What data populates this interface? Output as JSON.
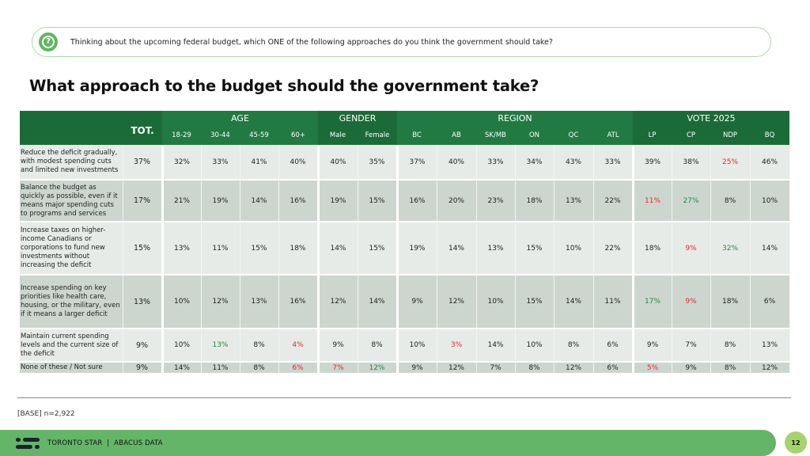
{
  "question": {
    "icon": "question-bubble-icon",
    "text": "Thinking about the upcoming federal budget, which ONE of the following approaches do you think the government should take?"
  },
  "title": "What approach to the budget should the government take?",
  "table": {
    "total_label": "TOT.",
    "groups": [
      {
        "label": "AGE",
        "columns": [
          "18-29",
          "30-44",
          "45-59",
          "60+"
        ]
      },
      {
        "label": "GENDER",
        "columns": [
          "Male",
          "Female"
        ]
      },
      {
        "label": "REGION",
        "columns": [
          "BC",
          "AB",
          "SK/MB",
          "ON",
          "QC",
          "ATL"
        ]
      },
      {
        "label": "VOTE 2025",
        "columns": [
          "LP",
          "CP",
          "NDP",
          "BQ"
        ]
      }
    ],
    "rows": [
      {
        "label": "Reduce the deficit gradually, with modest spending cuts and limited new investments",
        "total": "37%",
        "values": [
          "32%",
          "33%",
          "41%",
          "40%",
          "40%",
          "35%",
          "37%",
          "40%",
          "33%",
          "34%",
          "43%",
          "33%",
          "39%",
          "38%",
          "25%",
          "46%"
        ],
        "highlights": {
          "14": "red"
        }
      },
      {
        "label": "Balance the budget as quickly as possible, even if it means major spending cuts to programs and services",
        "total": "17%",
        "values": [
          "21%",
          "19%",
          "14%",
          "16%",
          "19%",
          "15%",
          "16%",
          "20%",
          "23%",
          "18%",
          "13%",
          "22%",
          "11%",
          "27%",
          "8%",
          "10%"
        ],
        "highlights": {
          "12": "red",
          "13": "green"
        }
      },
      {
        "label": "Increase taxes on higher-income Canadians or corporations to fund new investments without increasing the deficit",
        "total": "15%",
        "values": [
          "13%",
          "11%",
          "15%",
          "18%",
          "14%",
          "15%",
          "19%",
          "14%",
          "13%",
          "15%",
          "10%",
          "22%",
          "18%",
          "9%",
          "32%",
          "14%"
        ],
        "highlights": {
          "13": "red",
          "14": "green"
        }
      },
      {
        "label": "Increase spending on key priorities like health care, housing, or the military, even if it means a larger deficit",
        "total": "13%",
        "values": [
          "10%",
          "12%",
          "13%",
          "16%",
          "12%",
          "14%",
          "9%",
          "12%",
          "10%",
          "15%",
          "14%",
          "11%",
          "17%",
          "9%",
          "18%",
          "6%"
        ],
        "highlights": {
          "12": "green",
          "13": "red"
        }
      },
      {
        "label": "Maintain current spending levels and the current size of the deficit",
        "total": "9%",
        "values": [
          "10%",
          "13%",
          "8%",
          "4%",
          "9%",
          "8%",
          "10%",
          "3%",
          "14%",
          "10%",
          "8%",
          "6%",
          "9%",
          "7%",
          "8%",
          "13%"
        ],
        "highlights": {
          "1": "green",
          "3": "red",
          "7": "red"
        }
      },
      {
        "label": "None of these / Not sure",
        "total": "9%",
        "values": [
          "14%",
          "11%",
          "8%",
          "6%",
          "7%",
          "12%",
          "9%",
          "12%",
          "7%",
          "8%",
          "12%",
          "6%",
          "5%",
          "9%",
          "8%",
          "12%"
        ],
        "highlights": {
          "3": "red",
          "4": "red",
          "5": "green",
          "12": "red"
        }
      }
    ]
  },
  "base": "[BASE] n=2,922",
  "footer": {
    "logo": "abacus-logo-icon",
    "text": "TORONTO STAR  |  ABACUS DATA",
    "page_number": "12"
  },
  "colors": {
    "header_dark": "#1b6b38",
    "header_light": "#217a42",
    "row_light": "#e6ebe7",
    "row_dark": "#ccd6cf",
    "footer": "#64b568",
    "page_badge": "#a6d36b",
    "negative": "#e8262d",
    "positive": "#1f8a45"
  }
}
